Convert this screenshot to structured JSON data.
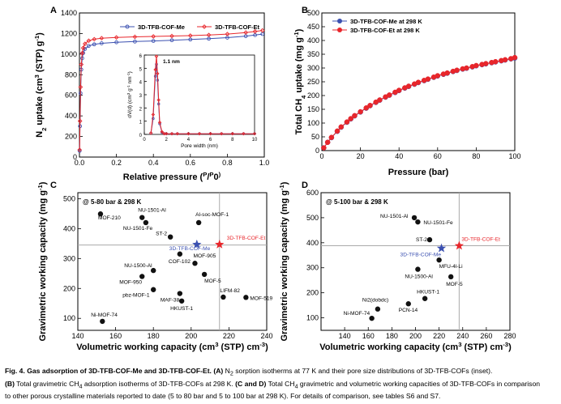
{
  "colors": {
    "me": "#3b50b0",
    "et": "#e8262b",
    "point": "#111111",
    "guide": "#aaaaaa"
  },
  "chart_data": [
    {
      "id": "A",
      "type": "line",
      "panel_label": "A",
      "xlabel_parts": [
        "Relative pressure (",
        "P",
        "/",
        "P",
        "0",
        ")"
      ],
      "ylabel_parts": [
        "N",
        "2",
        " uptake (cm",
        "3",
        " (STP) g",
        "-1",
        ")"
      ],
      "xlim": [
        0,
        1.0
      ],
      "ylim": [
        0,
        1400
      ],
      "xticks": [
        "0.0",
        "0.2",
        "0.4",
        "0.6",
        "0.8",
        "1.0"
      ],
      "yticks": [
        "0",
        "200",
        "400",
        "600",
        "800",
        "1000",
        "1200",
        "1400"
      ],
      "legend": [
        "3D-TFB-COF-Me",
        "3D-TFB-COF-Et"
      ],
      "series": [
        {
          "name": "3D-TFB-COF-Me",
          "x": [
            0.001,
            0.003,
            0.006,
            0.01,
            0.015,
            0.02,
            0.03,
            0.05,
            0.08,
            0.12,
            0.2,
            0.3,
            0.4,
            0.5,
            0.6,
            0.7,
            0.8,
            0.9,
            0.95,
            0.99
          ],
          "y": [
            60,
            300,
            620,
            850,
            960,
            1010,
            1050,
            1080,
            1095,
            1105,
            1115,
            1122,
            1128,
            1135,
            1142,
            1150,
            1160,
            1175,
            1185,
            1195
          ]
        },
        {
          "name": "3D-TFB-COF-Et",
          "x": [
            0.001,
            0.003,
            0.006,
            0.01,
            0.015,
            0.02,
            0.03,
            0.05,
            0.08,
            0.12,
            0.2,
            0.3,
            0.4,
            0.5,
            0.6,
            0.7,
            0.8,
            0.9,
            0.95,
            0.99
          ],
          "y": [
            70,
            350,
            680,
            900,
            1010,
            1060,
            1100,
            1130,
            1145,
            1155,
            1162,
            1168,
            1172,
            1176,
            1180,
            1186,
            1195,
            1210,
            1220,
            1230
          ]
        }
      ],
      "inset": {
        "xlabel": "Pore width (nm)",
        "ylabel_parts": [
          "dV(d) (cm",
          "3",
          " g",
          "-1",
          " nm",
          "-1",
          ")"
        ],
        "xlim": [
          0,
          10
        ],
        "ylim": [
          0,
          6
        ],
        "xticks": [
          "0",
          "2",
          "4",
          "6",
          "8",
          "10"
        ],
        "yticks": [
          "0",
          "1",
          "2",
          "3",
          "4",
          "5",
          "6"
        ],
        "annotation": "1.1 nm",
        "series": [
          {
            "name": "3D-TFB-COF-Me",
            "x": [
              0.6,
              0.8,
              1.0,
              1.1,
              1.2,
              1.3,
              1.4,
              1.6,
              1.8,
              2.0,
              2.5,
              3.0,
              4.0,
              5.0,
              6.0,
              7.0,
              8.0,
              9.0,
              10.0
            ],
            "y": [
              0.1,
              1.2,
              4.4,
              5.3,
              4.1,
              2.3,
              0.8,
              0.15,
              0.05,
              0.05,
              0.05,
              0.05,
              0.05,
              0.05,
              0.05,
              0.05,
              0.05,
              0.05,
              0.05
            ]
          },
          {
            "name": "3D-TFB-COF-Et",
            "x": [
              0.6,
              0.8,
              1.0,
              1.1,
              1.2,
              1.3,
              1.4,
              1.6,
              1.8,
              2.0,
              2.5,
              3.0,
              4.0,
              5.0,
              6.0,
              7.0,
              8.0,
              9.0,
              10.0
            ],
            "y": [
              0.1,
              1.5,
              4.9,
              5.9,
              4.6,
              2.6,
              0.9,
              0.2,
              0.05,
              0.05,
              0.05,
              0.05,
              0.05,
              0.05,
              0.05,
              0.05,
              0.05,
              0.05,
              0.05
            ]
          }
        ]
      }
    },
    {
      "id": "B",
      "type": "line",
      "panel_label": "B",
      "xlabel": "Pressure (bar)",
      "ylabel_parts": [
        "Total CH",
        "4",
        " uptake (mg g",
        "-1",
        ")"
      ],
      "xlim": [
        0,
        100
      ],
      "ylim": [
        0,
        500
      ],
      "xticks": [
        "0",
        "20",
        "40",
        "60",
        "80",
        "100"
      ],
      "yticks": [
        "0",
        "50",
        "100",
        "150",
        "200",
        "250",
        "300",
        "350",
        "400",
        "450",
        "500"
      ],
      "legend": [
        "3D-TFB-COF-Me at 298 K",
        "3D-TFB-COF-Et at 298 K"
      ],
      "series": [
        {
          "name": "3D-TFB-COF-Me at 298 K",
          "x": [
            1,
            3,
            5,
            8,
            10,
            13,
            15,
            17,
            20,
            23,
            25,
            28,
            30,
            33,
            35,
            38,
            40,
            43,
            45,
            48,
            50,
            53,
            55,
            58,
            60,
            63,
            65,
            68,
            70,
            73,
            75,
            78,
            80,
            83,
            85,
            88,
            90,
            93,
            95,
            98,
            100
          ],
          "y": [
            10,
            30,
            47,
            70,
            85,
            103,
            115,
            126,
            140,
            154,
            163,
            175,
            183,
            194,
            201,
            211,
            218,
            227,
            233,
            241,
            247,
            254,
            259,
            266,
            271,
            277,
            281,
            287,
            291,
            296,
            299,
            304,
            308,
            312,
            315,
            319,
            322,
            326,
            329,
            333,
            336
          ]
        },
        {
          "name": "3D-TFB-COF-Et at 298 K",
          "x": [
            1,
            3,
            5,
            8,
            10,
            13,
            15,
            17,
            20,
            23,
            25,
            28,
            30,
            33,
            35,
            38,
            40,
            43,
            45,
            48,
            50,
            53,
            55,
            58,
            60,
            63,
            65,
            68,
            70,
            73,
            75,
            78,
            80,
            83,
            85,
            88,
            90,
            93,
            95,
            98,
            100
          ],
          "y": [
            10,
            30,
            48,
            71,
            86,
            104,
            116,
            127,
            141,
            155,
            164,
            176,
            184,
            195,
            202,
            212,
            219,
            228,
            234,
            242,
            248,
            255,
            260,
            267,
            272,
            278,
            282,
            288,
            292,
            297,
            300,
            305,
            309,
            313,
            316,
            320,
            323,
            327,
            330,
            334,
            338
          ]
        }
      ]
    },
    {
      "id": "C",
      "type": "scatter",
      "panel_label": "C",
      "condition": "@ 5-80 bar & 298 K",
      "xlabel_parts": [
        "Volumetric working capacity (cm",
        "3",
        " (STP) cm",
        "-3",
        ")"
      ],
      "ylabel_parts": [
        "Gravimetric working capacity (mg g",
        "-1",
        ")"
      ],
      "xlim": [
        140,
        240
      ],
      "ylim": [
        60,
        520
      ],
      "xticks": [
        "140",
        "160",
        "180",
        "200",
        "220",
        "240"
      ],
      "yticks": [
        "100",
        "200",
        "300",
        "400",
        "500"
      ],
      "guide": {
        "x": 215,
        "y": 345
      },
      "points": [
        {
          "label": "MOF-210",
          "x": 152,
          "y": 449
        },
        {
          "label": "NU-1501-Al",
          "x": 174,
          "y": 437
        },
        {
          "label": "NU-1501-Fe",
          "x": 176,
          "y": 420
        },
        {
          "label": "Al-soc-MOF-1",
          "x": 204,
          "y": 420
        },
        {
          "label": "ST-2",
          "x": 189,
          "y": 372
        },
        {
          "label": "COF-102",
          "x": 194,
          "y": 315
        },
        {
          "label": "MOF-905",
          "x": 202,
          "y": 284
        },
        {
          "label": "NU-1500-Al",
          "x": 180,
          "y": 260
        },
        {
          "label": "MOF-950",
          "x": 174,
          "y": 240
        },
        {
          "label": "MOF-5",
          "x": 207,
          "y": 247
        },
        {
          "label": "pbz-MOF-1",
          "x": 180,
          "y": 196
        },
        {
          "label": "MAF-38",
          "x": 194,
          "y": 183
        },
        {
          "label": "HKUST-1",
          "x": 195,
          "y": 158
        },
        {
          "label": "LIFM-82",
          "x": 217,
          "y": 171
        },
        {
          "label": "MOF-519",
          "x": 229,
          "y": 170
        },
        {
          "label": "Ni-MOF-74",
          "x": 153,
          "y": 90
        }
      ],
      "highlights": [
        {
          "label": "3D-TFB-COF-Me",
          "x": 203,
          "y": 347,
          "color": "me"
        },
        {
          "label": "3D-TFB-COF-Et",
          "x": 215,
          "y": 347,
          "color": "et"
        }
      ]
    },
    {
      "id": "D",
      "type": "scatter",
      "panel_label": "D",
      "condition": "@ 5-100 bar & 298 K",
      "xlabel_parts": [
        "Volumetric working capacity (cm",
        "3",
        " (STP) cm",
        "-3",
        ")"
      ],
      "ylabel_parts": [
        "Gravimetric working capacity (mg g",
        "-1",
        ")"
      ],
      "xlim": [
        120,
        280
      ],
      "ylim": [
        50,
        600
      ],
      "xticks": [
        "140",
        "160",
        "180",
        "200",
        "220",
        "240",
        "260",
        "280"
      ],
      "yticks": [
        "100",
        "200",
        "300",
        "400",
        "500",
        "600"
      ],
      "guide": {
        "x": 237,
        "y": 388
      },
      "points": [
        {
          "label": "NU-1501-Al",
          "x": 199,
          "y": 500
        },
        {
          "label": "NU-1501-Fe",
          "x": 202,
          "y": 483
        },
        {
          "label": "ST-2",
          "x": 212,
          "y": 412
        },
        {
          "label": "MFU-4l-Li",
          "x": 220,
          "y": 331
        },
        {
          "label": "NU-1500-Al",
          "x": 202,
          "y": 294
        },
        {
          "label": "MOF-5",
          "x": 230,
          "y": 264
        },
        {
          "label": "HKUST-1",
          "x": 208,
          "y": 177
        },
        {
          "label": "Ni2(dobdc)",
          "x": 168,
          "y": 135
        },
        {
          "label": "PCN-14",
          "x": 194,
          "y": 156
        },
        {
          "label": "Ni-MOF-74",
          "x": 163,
          "y": 98
        }
      ],
      "highlights": [
        {
          "label": "3D-TFB-COF-Me",
          "x": 222,
          "y": 378,
          "color": "me"
        },
        {
          "label": "3D-TFB-COF-Et",
          "x": 237,
          "y": 388,
          "color": "et"
        }
      ]
    }
  ],
  "caption": {
    "title_a": "Fig. 4. Gas adsorption of 3D-TFB-COF-Me and 3D-TFB-COF-Et.",
    "l1_A": "(A)",
    "l1_a": " N",
    "l1_b": "2",
    "l1_c": " sorption isotherms at 77 K and their pore size distributions of 3D-TFB-COFs (inset).",
    "l2_B": "(B)",
    "l2_a": " Total gravimetric CH",
    "l2_b": "4",
    "l2_c": " adsorption isotherms of 3D-TFB-COFs at 298 K. ",
    "l2_CD": "(C and D)",
    "l2_d": " Total CH",
    "l2_e": "4",
    "l2_f": " gravimetric and volumetric working capacities of 3D-TFB-COFs in comparison",
    "l3": "to other porous crystalline materials reported to date (5 to 80 bar and 5 to 100 bar at 298 K). For details of comparison, see tables S6 and S7."
  }
}
